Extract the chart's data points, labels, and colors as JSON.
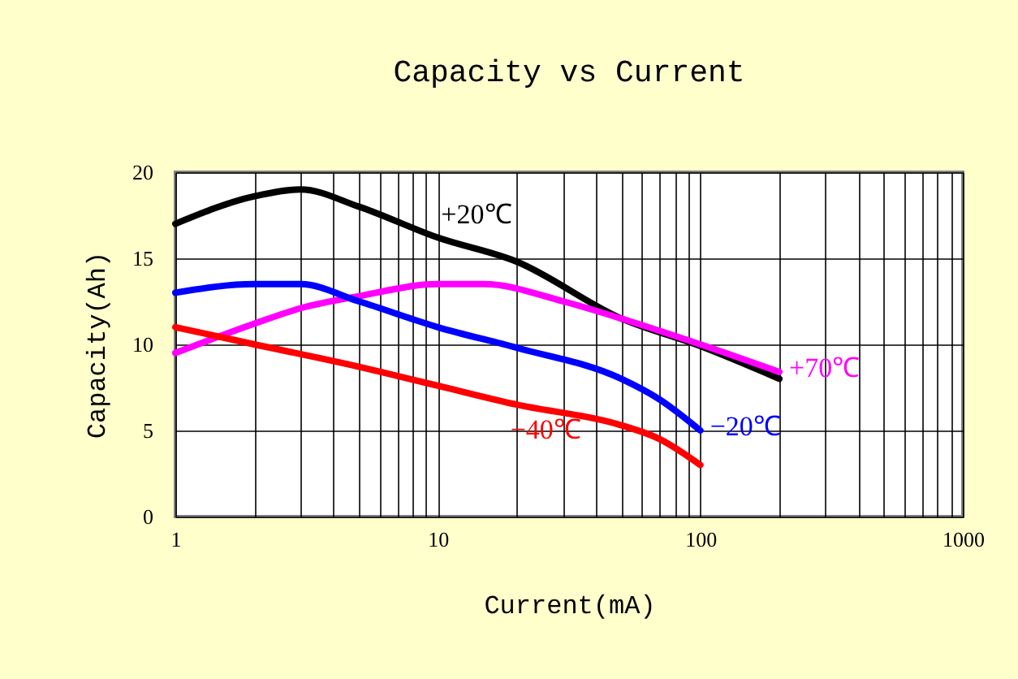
{
  "chart_data": {
    "type": "line",
    "title": "Capacity vs Current",
    "xlabel": "Current(mA)",
    "ylabel": "Capacity(Ah)",
    "log": "x",
    "grid": true,
    "line_style": "solid",
    "marker": "none",
    "xlim": [
      1,
      1000
    ],
    "ylim": [
      0,
      20
    ],
    "xticks": [
      1,
      {
        "value": 2,
        "label": null
      },
      {
        "value": 3,
        "label": null
      },
      {
        "value": 4,
        "label": null
      },
      {
        "value": 5,
        "label": null
      },
      {
        "value": 6,
        "label": null
      },
      {
        "value": 7,
        "label": null
      },
      {
        "value": 8,
        "label": null
      },
      {
        "value": 9,
        "label": null
      },
      10,
      {
        "value": 20,
        "label": null
      },
      {
        "value": 30,
        "label": null
      },
      {
        "value": 40,
        "label": null
      },
      {
        "value": 50,
        "label": null
      },
      {
        "value": 60,
        "label": null
      },
      {
        "value": 70,
        "label": null
      },
      {
        "value": 80,
        "label": null
      },
      {
        "value": 90,
        "label": null
      },
      100,
      {
        "value": 200,
        "label": null
      },
      {
        "value": 300,
        "label": null
      },
      {
        "value": 400,
        "label": null
      },
      {
        "value": 500,
        "label": null
      },
      {
        "value": 600,
        "label": null
      },
      {
        "value": 700,
        "label": null
      },
      {
        "value": 800,
        "label": null
      },
      {
        "value": 900,
        "label": null
      },
      1000
    ],
    "yticks": [
      0,
      5,
      10,
      15,
      20
    ],
    "series": [
      {
        "name": "+20℃",
        "color": "#000000",
        "x": [
          1,
          2,
          3,
          5,
          10,
          20,
          50,
          100,
          200
        ],
        "values": [
          17,
          18.6,
          19,
          18,
          16.2,
          14.8,
          11.5,
          9.9,
          8
        ]
      },
      {
        "name": "+70℃",
        "color": "#ff00ff",
        "x": [
          1,
          2,
          3,
          5,
          10,
          15,
          30,
          50,
          100,
          200
        ],
        "values": [
          9.5,
          11.2,
          12.1,
          12.8,
          13.5,
          13.5,
          12.5,
          11.5,
          10,
          8.4
        ]
      },
      {
        "name": "−20℃",
        "color": "#0000ff",
        "x": [
          1,
          2,
          3,
          5,
          10,
          20,
          50,
          70,
          100
        ],
        "values": [
          13,
          13.5,
          13.5,
          12.5,
          11,
          9.8,
          8,
          6.8,
          5
        ]
      },
      {
        "name": "−40℃",
        "color": "#ff0000",
        "x": [
          1,
          2,
          5,
          10,
          20,
          50,
          70,
          100
        ],
        "values": [
          11,
          10,
          8.7,
          7.6,
          6.5,
          5.3,
          4.5,
          3
        ]
      }
    ]
  }
}
